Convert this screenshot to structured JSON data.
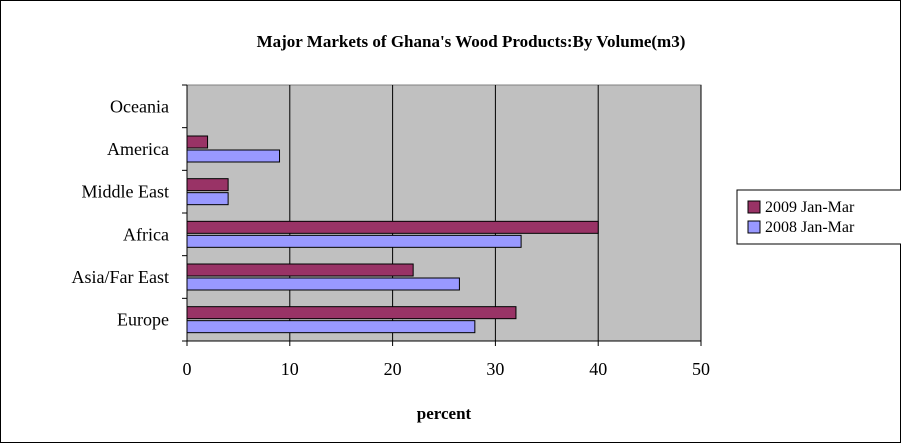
{
  "chart_data": {
    "type": "bar",
    "orientation": "horizontal",
    "title": "Major Markets of Ghana's Wood Products:By Volume(m3)",
    "xlabel": "percent",
    "ylabel": "",
    "xlim": [
      0,
      50
    ],
    "xticks": [
      0,
      10,
      20,
      30,
      40,
      50
    ],
    "grid": true,
    "legend_position": "right",
    "plot_background": "#c0c0c0",
    "categories": [
      "Europe",
      "Asia/Far East",
      "Africa",
      "Middle East",
      "America",
      "Oceania"
    ],
    "series": [
      {
        "name": "2009 Jan-Mar",
        "color": "#993366",
        "values": [
          32,
          22,
          40,
          4,
          2,
          0
        ]
      },
      {
        "name": "2008 Jan-Mar",
        "color": "#9999ff",
        "values": [
          28,
          26.5,
          32.5,
          4,
          9,
          0
        ]
      }
    ]
  }
}
